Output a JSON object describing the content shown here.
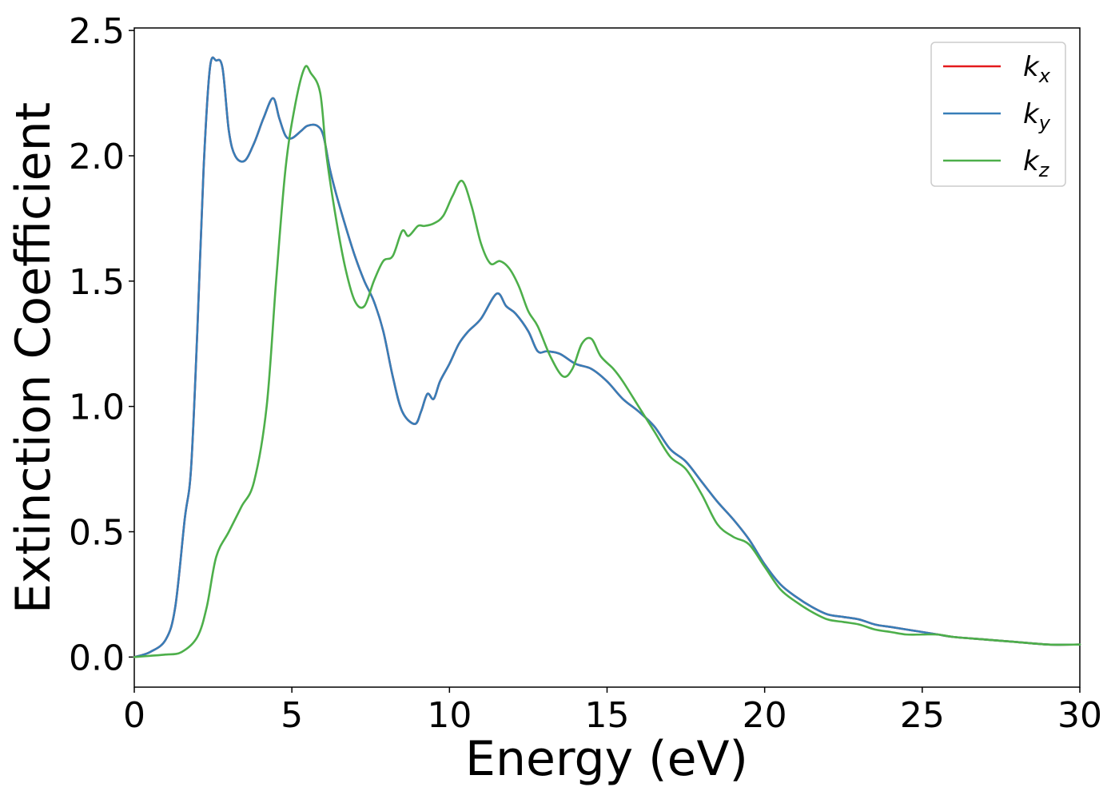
{
  "chart_data": {
    "type": "line",
    "title": "",
    "xlabel": "Energy (eV)",
    "ylabel": "Extinction Coefficient",
    "xlim": [
      0,
      30
    ],
    "ylim": [
      -0.12,
      2.51
    ],
    "xticks": [
      0,
      5,
      10,
      15,
      20,
      25,
      30
    ],
    "xtick_labels": [
      "0",
      "5",
      "10",
      "15",
      "20",
      "25",
      "30"
    ],
    "yticks": [
      0.0,
      0.5,
      1.0,
      1.5,
      2.0,
      2.5
    ],
    "ytick_labels": [
      "0.0",
      "0.5",
      "1.0",
      "1.5",
      "2.0",
      "2.5"
    ],
    "grid": false,
    "legend_position": "top-right",
    "series": [
      {
        "name": "k_x",
        "label_main": "k",
        "label_sub": "x",
        "color": "#e41a1c",
        "x": [
          0,
          0.5,
          1.0,
          1.3,
          1.6,
          1.8,
          2.0,
          2.2,
          2.4,
          2.6,
          2.8,
          3.0,
          3.2,
          3.5,
          3.8,
          4.1,
          4.4,
          4.6,
          4.8,
          5.0,
          5.3,
          5.5,
          5.8,
          6.0,
          6.2,
          6.4,
          6.7,
          7.0,
          7.3,
          7.6,
          7.9,
          8.2,
          8.5,
          8.9,
          9.1,
          9.3,
          9.5,
          9.7,
          10.0,
          10.3,
          10.6,
          11.0,
          11.5,
          11.8,
          12.1,
          12.5,
          12.8,
          13.1,
          13.5,
          14.0,
          14.5,
          15.0,
          15.5,
          16.0,
          16.5,
          17.0,
          17.5,
          18.0,
          18.5,
          19.0,
          19.5,
          20.0,
          20.5,
          21.0,
          21.5,
          22.0,
          22.5,
          23.0,
          23.5,
          24.0,
          24.5,
          25.0,
          25.5,
          26.0,
          27.0,
          28.0,
          29.0,
          30.0
        ],
        "values": [
          0,
          0.02,
          0.07,
          0.2,
          0.55,
          0.75,
          1.3,
          1.95,
          2.35,
          2.38,
          2.35,
          2.1,
          2.0,
          1.98,
          2.05,
          2.15,
          2.23,
          2.15,
          2.08,
          2.07,
          2.1,
          2.12,
          2.12,
          2.08,
          1.95,
          1.85,
          1.72,
          1.6,
          1.5,
          1.42,
          1.3,
          1.12,
          0.98,
          0.93,
          0.98,
          1.05,
          1.03,
          1.1,
          1.17,
          1.25,
          1.3,
          1.35,
          1.45,
          1.4,
          1.37,
          1.3,
          1.22,
          1.22,
          1.21,
          1.17,
          1.15,
          1.1,
          1.03,
          0.98,
          0.92,
          0.83,
          0.78,
          0.7,
          0.62,
          0.55,
          0.47,
          0.37,
          0.29,
          0.24,
          0.2,
          0.17,
          0.16,
          0.15,
          0.13,
          0.12,
          0.11,
          0.1,
          0.09,
          0.08,
          0.07,
          0.06,
          0.05,
          0.05
        ]
      },
      {
        "name": "k_y",
        "label_main": "k",
        "label_sub": "y",
        "color": "#377eb8",
        "x": [
          0,
          0.5,
          1.0,
          1.3,
          1.6,
          1.8,
          2.0,
          2.2,
          2.4,
          2.6,
          2.8,
          3.0,
          3.2,
          3.5,
          3.8,
          4.1,
          4.4,
          4.6,
          4.8,
          5.0,
          5.3,
          5.5,
          5.8,
          6.0,
          6.2,
          6.4,
          6.7,
          7.0,
          7.3,
          7.6,
          7.9,
          8.2,
          8.5,
          8.9,
          9.1,
          9.3,
          9.5,
          9.7,
          10.0,
          10.3,
          10.6,
          11.0,
          11.5,
          11.8,
          12.1,
          12.5,
          12.8,
          13.1,
          13.5,
          14.0,
          14.5,
          15.0,
          15.5,
          16.0,
          16.5,
          17.0,
          17.5,
          18.0,
          18.5,
          19.0,
          19.5,
          20.0,
          20.5,
          21.0,
          21.5,
          22.0,
          22.5,
          23.0,
          23.5,
          24.0,
          24.5,
          25.0,
          25.5,
          26.0,
          27.0,
          28.0,
          29.0,
          30.0
        ],
        "values": [
          0,
          0.02,
          0.07,
          0.2,
          0.55,
          0.75,
          1.3,
          1.95,
          2.35,
          2.38,
          2.35,
          2.1,
          2.0,
          1.98,
          2.05,
          2.15,
          2.23,
          2.15,
          2.08,
          2.07,
          2.1,
          2.12,
          2.12,
          2.08,
          1.95,
          1.85,
          1.72,
          1.6,
          1.5,
          1.42,
          1.3,
          1.12,
          0.98,
          0.93,
          0.98,
          1.05,
          1.03,
          1.1,
          1.17,
          1.25,
          1.3,
          1.35,
          1.45,
          1.4,
          1.37,
          1.3,
          1.22,
          1.22,
          1.21,
          1.17,
          1.15,
          1.1,
          1.03,
          0.98,
          0.92,
          0.83,
          0.78,
          0.7,
          0.62,
          0.55,
          0.47,
          0.37,
          0.29,
          0.24,
          0.2,
          0.17,
          0.16,
          0.15,
          0.13,
          0.12,
          0.11,
          0.1,
          0.09,
          0.08,
          0.07,
          0.06,
          0.05,
          0.05
        ]
      },
      {
        "name": "k_z",
        "label_main": "k",
        "label_sub": "z",
        "color": "#4daf4a",
        "x": [
          0,
          0.5,
          1.0,
          1.5,
          2.0,
          2.3,
          2.6,
          3.0,
          3.4,
          3.8,
          4.2,
          4.5,
          4.8,
          5.1,
          5.4,
          5.6,
          5.9,
          6.1,
          6.4,
          6.7,
          7.0,
          7.3,
          7.6,
          7.9,
          8.2,
          8.5,
          8.7,
          9.0,
          9.2,
          9.5,
          9.8,
          10.1,
          10.4,
          10.7,
          11.0,
          11.3,
          11.6,
          11.9,
          12.2,
          12.5,
          12.8,
          13.2,
          13.6,
          13.9,
          14.2,
          14.5,
          14.8,
          15.2,
          15.5,
          16.0,
          16.5,
          17.0,
          17.5,
          18.0,
          18.5,
          19.0,
          19.5,
          20.0,
          20.5,
          21.0,
          21.5,
          22.0,
          22.5,
          23.0,
          23.5,
          24.0,
          24.5,
          25.0,
          25.5,
          26.0,
          27.0,
          28.0,
          29.0,
          30.0
        ],
        "values": [
          0,
          0.005,
          0.01,
          0.02,
          0.08,
          0.2,
          0.4,
          0.5,
          0.6,
          0.7,
          1.0,
          1.5,
          1.95,
          2.2,
          2.35,
          2.33,
          2.25,
          2.0,
          1.75,
          1.55,
          1.42,
          1.4,
          1.5,
          1.58,
          1.6,
          1.7,
          1.68,
          1.72,
          1.72,
          1.73,
          1.76,
          1.84,
          1.9,
          1.8,
          1.65,
          1.57,
          1.58,
          1.55,
          1.48,
          1.38,
          1.32,
          1.2,
          1.12,
          1.15,
          1.25,
          1.27,
          1.2,
          1.15,
          1.1,
          1.0,
          0.9,
          0.8,
          0.75,
          0.65,
          0.53,
          0.48,
          0.45,
          0.36,
          0.27,
          0.22,
          0.18,
          0.15,
          0.14,
          0.13,
          0.11,
          0.1,
          0.09,
          0.09,
          0.09,
          0.08,
          0.07,
          0.06,
          0.05,
          0.05
        ]
      }
    ]
  }
}
